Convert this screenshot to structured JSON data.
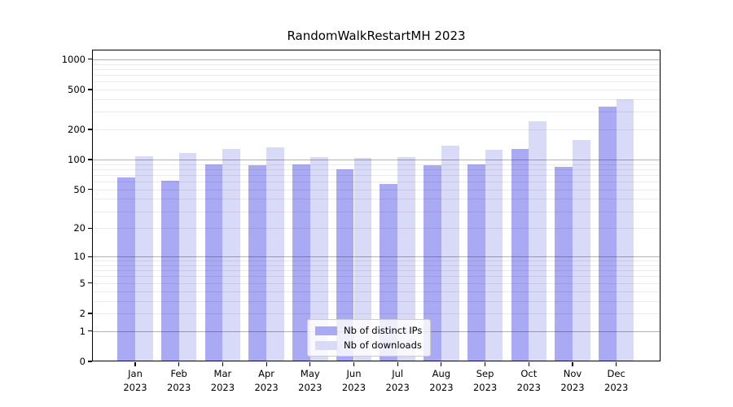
{
  "chart_data": {
    "type": "bar",
    "title": "RandomWalkRestartMH 2023",
    "categories": [
      "Jan",
      "Feb",
      "Mar",
      "Apr",
      "May",
      "Jun",
      "Jul",
      "Aug",
      "Sep",
      "Oct",
      "Nov",
      "Dec"
    ],
    "x_year": "2023",
    "series": [
      {
        "name": "Nb of distinct IPs",
        "color": "#a9a9f4",
        "values": [
          66,
          61,
          89,
          88,
          90,
          80,
          57,
          88,
          90,
          128,
          84,
          338
        ]
      },
      {
        "name": "Nb of downloads",
        "color": "#d9d9f8",
        "values": [
          107,
          116,
          127,
          132,
          106,
          104,
          105,
          137,
          126,
          240,
          157,
          400
        ]
      }
    ],
    "yscale": "log1p",
    "yticks": [
      0,
      1,
      2,
      5,
      10,
      20,
      50,
      100,
      200,
      500,
      1000
    ],
    "ylim": [
      0,
      1250
    ],
    "grid": "on",
    "legend_position": "lower center"
  }
}
